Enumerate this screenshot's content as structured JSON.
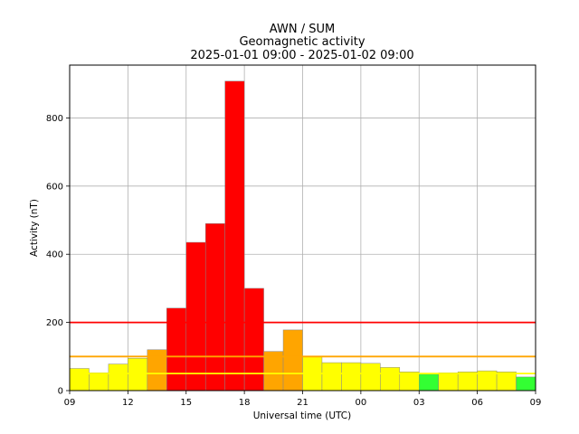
{
  "chart_data": {
    "type": "bar",
    "title_lines": [
      "AWN / SUM",
      "Geomagnetic activity",
      "2025-01-01 09:00 - 2025-01-02 09:00"
    ],
    "xlabel": "Universal time (UTC)",
    "ylabel": "Activity (nT)",
    "ylim": [
      0,
      955
    ],
    "x_tick_labels": [
      "09",
      "12",
      "15",
      "18",
      "21",
      "00",
      "03",
      "06",
      "09"
    ],
    "y_ticks": [
      0,
      200,
      400,
      600,
      800
    ],
    "grid": true,
    "hours": [
      "09",
      "10",
      "11",
      "12",
      "13",
      "14",
      "15",
      "16",
      "17",
      "18",
      "19",
      "20",
      "21",
      "22",
      "23",
      "00",
      "01",
      "02",
      "03",
      "04",
      "05",
      "06",
      "07",
      "08"
    ],
    "values": [
      65,
      52,
      78,
      95,
      120,
      242,
      435,
      490,
      908,
      300,
      115,
      178,
      100,
      82,
      82,
      80,
      68,
      55,
      48,
      52,
      55,
      58,
      55,
      40
    ],
    "bar_colors": [
      "#ffff00",
      "#ffff00",
      "#ffff00",
      "#ffff00",
      "#ffa500",
      "#ff0000",
      "#ff0000",
      "#ff0000",
      "#ff0000",
      "#ff0000",
      "#ffa500",
      "#ffa500",
      "#ffff00",
      "#ffff00",
      "#ffff00",
      "#ffff00",
      "#ffff00",
      "#ffff00",
      "#33ff33",
      "#ffff00",
      "#ffff00",
      "#ffff00",
      "#ffff00",
      "#33ff33"
    ],
    "thresholds": [
      {
        "value": 200,
        "color": "#ff0000"
      },
      {
        "value": 100,
        "color": "#ffa500"
      },
      {
        "value": 50,
        "color": "#ffff00"
      }
    ]
  }
}
